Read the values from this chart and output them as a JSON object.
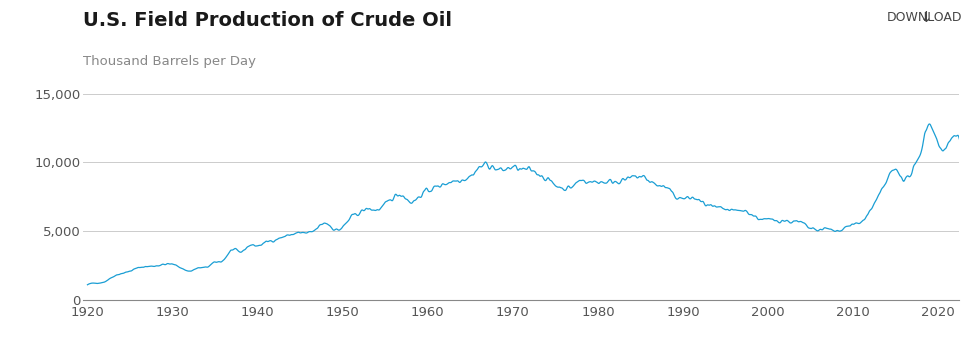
{
  "title": "U.S. Field Production of Crude Oil",
  "ylabel": "Thousand Barrels per Day",
  "line_color": "#1a9ed4",
  "background_color": "#ffffff",
  "legend_label": "U.S. Field Production of Crude Oil",
  "ylim": [
    0,
    16000
  ],
  "yticks": [
    0,
    5000,
    10000,
    15000
  ],
  "xlim": [
    1919.5,
    2022.5
  ],
  "xticks": [
    1920,
    1930,
    1940,
    1950,
    1960,
    1970,
    1980,
    1990,
    2000,
    2010,
    2020
  ],
  "download_text": "DOWNLOAD",
  "title_fontsize": 14,
  "tick_fontsize": 9.5,
  "legend_fontsize": 9.5,
  "ylabel_fontsize": 9.5,
  "annual_years": [
    1920,
    1921,
    1922,
    1923,
    1924,
    1925,
    1926,
    1927,
    1928,
    1929,
    1930,
    1931,
    1932,
    1933,
    1934,
    1935,
    1936,
    1937,
    1938,
    1939,
    1940,
    1941,
    1942,
    1943,
    1944,
    1945,
    1946,
    1947,
    1948,
    1949,
    1950,
    1951,
    1952,
    1953,
    1954,
    1955,
    1956,
    1957,
    1958,
    1959,
    1960,
    1961,
    1962,
    1963,
    1964,
    1965,
    1966,
    1967,
    1968,
    1969,
    1970,
    1971,
    1972,
    1973,
    1974,
    1975,
    1976,
    1977,
    1978,
    1979,
    1980,
    1981,
    1982,
    1983,
    1984,
    1985,
    1986,
    1987,
    1988,
    1989,
    1990,
    1991,
    1992,
    1993,
    1994,
    1995,
    1996,
    1997,
    1998,
    1999,
    2000,
    2001,
    2002,
    2003,
    2004,
    2005,
    2006,
    2007,
    2008,
    2009,
    2010,
    2011,
    2012,
    2013,
    2014,
    2015,
    2016,
    2017,
    2018,
    2019,
    2020,
    2021,
    2022
  ],
  "annual_values": [
    1097,
    1232,
    1320,
    1700,
    1920,
    2100,
    2340,
    2430,
    2480,
    2580,
    2590,
    2340,
    2100,
    2320,
    2380,
    2730,
    2910,
    3640,
    3480,
    3950,
    3940,
    4200,
    4370,
    4580,
    4760,
    4880,
    4860,
    5200,
    5600,
    5150,
    5280,
    6000,
    6350,
    6620,
    6540,
    6920,
    7480,
    7640,
    7140,
    7520,
    7960,
    8190,
    8460,
    8650,
    8780,
    9010,
    9580,
    9840,
    9520,
    9460,
    9640,
    9460,
    9440,
    9200,
    8790,
    8370,
    8130,
    8250,
    8700,
    8570,
    8600,
    8570,
    8650,
    8690,
    8870,
    8970,
    8680,
    8350,
    8140,
    7610,
    7360,
    7420,
    7170,
    6850,
    6660,
    6560,
    6470,
    6500,
    6250,
    5900,
    5820,
    5800,
    5750,
    5680,
    5580,
    5180,
    5100,
    5160,
    5000,
    5270,
    5480,
    5660,
    6490,
    7480,
    8710,
    9420,
    8830,
    9330,
    10960,
    12870,
    11280,
    11200,
    11900
  ]
}
